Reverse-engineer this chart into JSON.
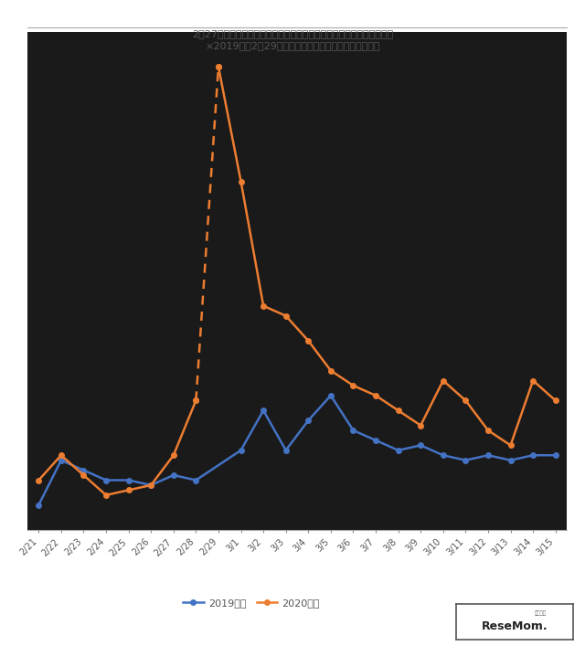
{
  "title": "2月27日の臨時休校の要請後における連絡網の利用者数（学校・教育）\n×2019年は2月29日が存在しないため数値カウントなし",
  "x_labels": [
    "2/21",
    "2/22",
    "2/23",
    "2/24",
    "2/25",
    "2/26",
    "2/27",
    "2/28",
    "2/29",
    "3/1",
    "3/2",
    "3/3",
    "3/4",
    "3/5",
    "3/6",
    "3/7",
    "3/8",
    "3/9",
    "3/10",
    "3/11",
    "3/12",
    "3/13",
    "3/14",
    "3/15"
  ],
  "series_2019_x_idx": [
    0,
    1,
    2,
    3,
    4,
    5,
    6,
    7,
    9,
    10,
    11,
    12,
    13,
    14,
    15,
    16,
    17,
    18,
    19,
    20,
    21,
    22,
    23
  ],
  "series_2019_y": [
    1.0,
    1.9,
    1.7,
    1.5,
    1.5,
    1.4,
    1.6,
    1.5,
    2.1,
    2.9,
    2.1,
    2.7,
    3.2,
    2.5,
    2.3,
    2.1,
    2.2,
    2.0,
    1.9,
    2.0,
    1.9,
    2.0,
    2.0
  ],
  "series_2020_x_idx": [
    0,
    1,
    2,
    3,
    4,
    5,
    6,
    7,
    8,
    9,
    10,
    11,
    12,
    13,
    14,
    15,
    16,
    17,
    18,
    19,
    20,
    21,
    22,
    23
  ],
  "series_2020_y": [
    1.5,
    2.0,
    1.6,
    1.2,
    1.3,
    1.4,
    2.0,
    3.1,
    9.8,
    7.5,
    5.0,
    4.8,
    4.3,
    3.7,
    3.4,
    3.2,
    2.9,
    2.6,
    3.5,
    3.1,
    2.5,
    2.2,
    3.5,
    3.1
  ],
  "dashed_from": 7,
  "dashed_to": 8,
  "color_2019": "#4472c4",
  "color_2020": "#ed7d31",
  "label_2019": "2019年度",
  "label_2020": "2020年度",
  "plot_bg_color": "#1a1a1a",
  "fig_bg_color": "#ffffff",
  "grid_color": "#aaaaaa",
  "title_fontsize": 8,
  "tick_fontsize": 7,
  "legend_fontsize": 8,
  "line_width": 1.8,
  "marker_size": 4,
  "ylim_min": 0.5,
  "ylim_max": 10.5,
  "n_gridlines": 9
}
